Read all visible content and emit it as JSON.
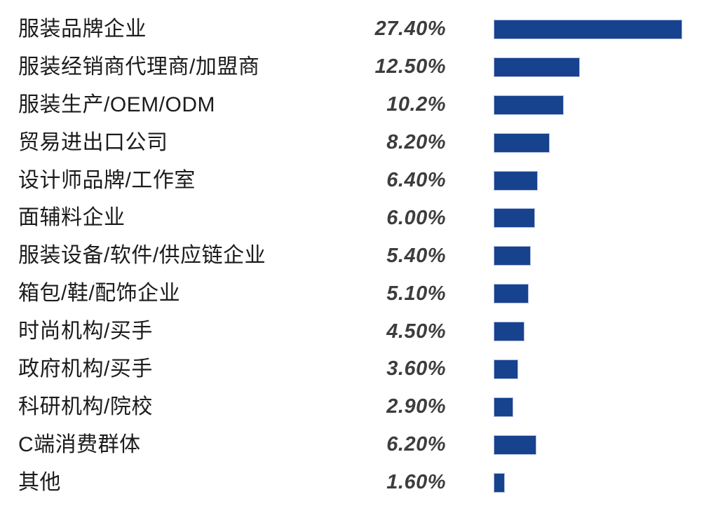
{
  "chart_data": {
    "type": "bar",
    "orientation": "horizontal",
    "title": "",
    "xlabel": "",
    "ylabel": "",
    "grid": false,
    "legend": false,
    "xlim": [
      0,
      30
    ],
    "categories": [
      "服装品牌企业",
      "服装经销商代理商/加盟商",
      "服装生产/OEM/ODM",
      "贸易进出口公司",
      "设计师品牌/工作室",
      "面辅料企业",
      "服装设备/软件/供应链企业",
      "箱包/鞋/配饰企业",
      "时尚机构/买手",
      "政府机构/买手",
      "科研机构/院校",
      "C端消费群体",
      "其他"
    ],
    "values": [
      27.4,
      12.5,
      10.2,
      8.2,
      6.4,
      6.0,
      5.4,
      5.1,
      4.5,
      3.6,
      2.9,
      6.2,
      1.6
    ],
    "value_labels": [
      "27.40%",
      "12.50%",
      "10.2%",
      "8.20%",
      "6.40%",
      "6.00%",
      "5.40%",
      "5.10%",
      "4.50%",
      "3.60%",
      "2.90%",
      "6.20%",
      "1.60%"
    ],
    "bar_color": "#17428e",
    "bar_border_color": "#b3bedf"
  },
  "colors": {
    "background": "#ffffff",
    "category_text": "#1c1c1c",
    "value_text": "#3d3d3d"
  }
}
